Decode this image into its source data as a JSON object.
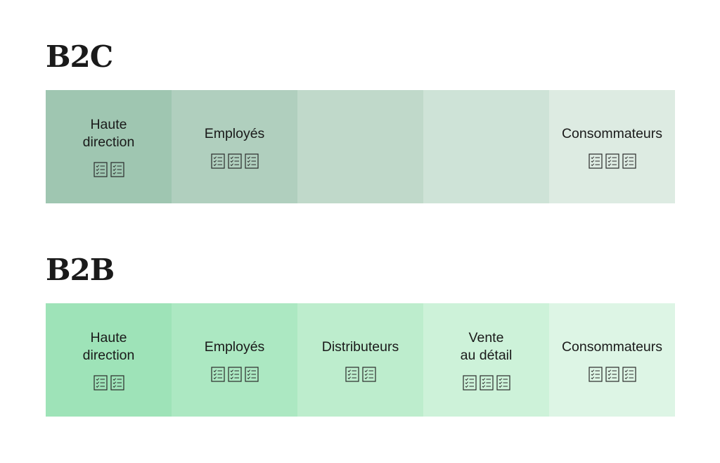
{
  "sections": [
    {
      "title": "B2C",
      "cells": [
        {
          "label": "Haute\ndirection",
          "color": "#9fc6b1",
          "icon_count": 2
        },
        {
          "label": "Employés",
          "color": "#b0cfbe",
          "icon_count": 3
        },
        {
          "label": "",
          "color": "#c0d9ca",
          "icon_count": 0
        },
        {
          "label": "",
          "color": "#cee3d7",
          "icon_count": 0
        },
        {
          "label": "Consommateurs",
          "color": "#ddebe2",
          "icon_count": 3
        }
      ]
    },
    {
      "title": "B2B",
      "cells": [
        {
          "label": "Haute\ndirection",
          "color": "#9ee3b8",
          "icon_count": 2
        },
        {
          "label": "Employés",
          "color": "#ace8c2",
          "icon_count": 3
        },
        {
          "label": "Distributeurs",
          "color": "#bdedcd",
          "icon_count": 2
        },
        {
          "label": "Vente\nau détail",
          "color": "#cdf2d9",
          "icon_count": 3
        },
        {
          "label": "Consommateurs",
          "color": "#ddf5e5",
          "icon_count": 3
        }
      ]
    }
  ],
  "icon_name": "checklist-document-icon"
}
